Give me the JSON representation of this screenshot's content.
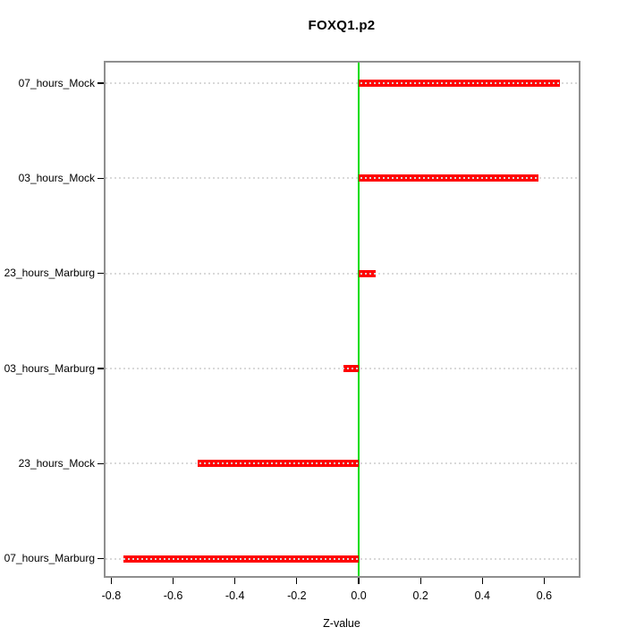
{
  "chart_data": {
    "type": "bar",
    "orientation": "horizontal",
    "title": "FOXQ1.p2",
    "xlabel": "Z-value",
    "ylabel": "",
    "categories": [
      "07_hours_Mock",
      "03_hours_Mock",
      "23_hours_Marburg",
      "03_hours_Marburg",
      "23_hours_Mock",
      "07_hours_Marburg"
    ],
    "values": [
      0.65,
      0.58,
      0.055,
      -0.05,
      -0.52,
      -0.76
    ],
    "xlim": [
      -0.82,
      0.71
    ],
    "x_ticks": [
      -0.8,
      -0.6,
      -0.4,
      -0.2,
      0.0,
      0.2,
      0.4,
      0.6
    ],
    "x_tick_labels": [
      "-0.8",
      "-0.6",
      "-0.4",
      "-0.2",
      "0.0",
      "0.2",
      "0.4",
      "0.6"
    ],
    "zero_line_x": 0,
    "grid": "dotted-horizontal-per-row",
    "legend": "none",
    "colors": {
      "bar": "#ff0000",
      "zero_line": "#00dd00",
      "grid_line": "#d9d9d9",
      "box_border": "#8f8f8f",
      "axis_tick": "#000000",
      "text": "#000000",
      "background": "#ffffff"
    }
  }
}
